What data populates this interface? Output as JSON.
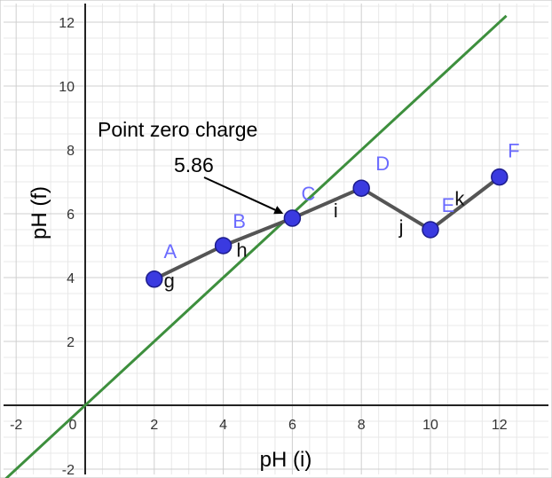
{
  "chart_data": {
    "type": "line",
    "xlabel": "pH (i)",
    "ylabel": "pH (f)",
    "xlim": [
      -2.2,
      13.3
    ],
    "ylim": [
      -2.3,
      12.2
    ],
    "grid": true,
    "x_ticks": [
      "-2",
      "0",
      "2",
      "4",
      "6",
      "8",
      "10",
      "12"
    ],
    "y_ticks": [
      "-2",
      "2",
      "4",
      "6",
      "8",
      "10",
      "12"
    ],
    "series": [
      {
        "points": [
          {
            "label": "A",
            "x": 2,
            "y": 3.95
          },
          {
            "label": "B",
            "x": 4,
            "y": 5.0
          },
          {
            "label": "C",
            "x": 6,
            "y": 5.86
          },
          {
            "label": "D",
            "x": 8,
            "y": 6.8
          },
          {
            "label": "E",
            "x": 10,
            "y": 5.5
          },
          {
            "label": "F",
            "x": 12,
            "y": 7.15
          }
        ],
        "segment_labels": [
          "g",
          "h",
          "i",
          "j",
          "k"
        ],
        "line_color": "#555555",
        "marker_color": "#3a3ae0",
        "label_color": "#6b6bff"
      }
    ],
    "reference_line": {
      "slope": 1,
      "intercept": 0,
      "color": "#3d8f3d"
    },
    "annotation": {
      "title": "Point zero charge",
      "value": "5.86",
      "x": 6,
      "y": 5.86
    }
  }
}
